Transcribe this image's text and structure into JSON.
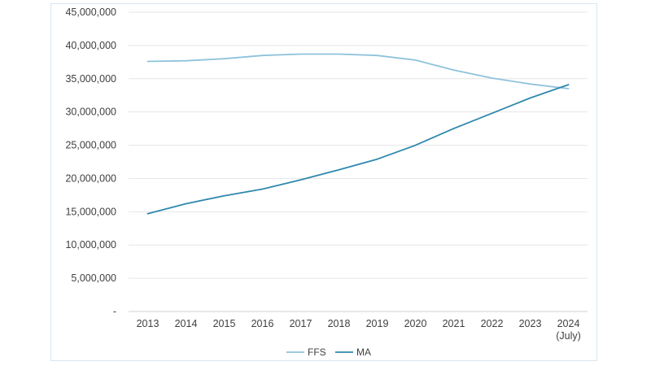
{
  "chart_data": {
    "type": "line",
    "title": "",
    "xlabel": "",
    "ylabel": "",
    "categories": [
      [
        "2013"
      ],
      [
        "2014"
      ],
      [
        "2015"
      ],
      [
        "2016"
      ],
      [
        "2017"
      ],
      [
        "2018"
      ],
      [
        "2019"
      ],
      [
        "2020"
      ],
      [
        "2021"
      ],
      [
        "2022"
      ],
      [
        "2023"
      ],
      [
        "2024",
        "(July)"
      ]
    ],
    "y_ticks": [
      {
        "value": 0,
        "label": "-"
      },
      {
        "value": 5000000,
        "label": "5,000,000"
      },
      {
        "value": 10000000,
        "label": "10,000,000"
      },
      {
        "value": 15000000,
        "label": "15,000,000"
      },
      {
        "value": 20000000,
        "label": "20,000,000"
      },
      {
        "value": 25000000,
        "label": "25,000,000"
      },
      {
        "value": 30000000,
        "label": "30,000,000"
      },
      {
        "value": 35000000,
        "label": "35,000,000"
      },
      {
        "value": 40000000,
        "label": "40,000,000"
      },
      {
        "value": 45000000,
        "label": "45,000,000"
      }
    ],
    "ylim": [
      0,
      45000000
    ],
    "grid": "horizontal",
    "legend_position": "bottom",
    "series": [
      {
        "name": "FFS",
        "color": "#8ec3db",
        "values": [
          37600000,
          37700000,
          38000000,
          38500000,
          38700000,
          38700000,
          38500000,
          37800000,
          36300000,
          35100000,
          34200000,
          33500000
        ]
      },
      {
        "name": "MA",
        "color": "#2f88ad",
        "values": [
          14700000,
          16200000,
          17400000,
          18400000,
          19800000,
          21300000,
          22900000,
          25000000,
          27500000,
          29800000,
          32100000,
          34100000
        ]
      }
    ]
  }
}
